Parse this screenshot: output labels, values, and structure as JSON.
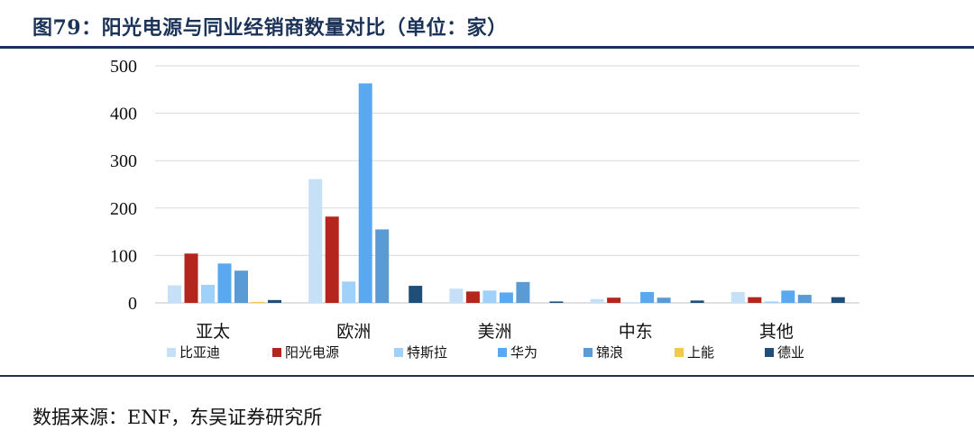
{
  "figure": {
    "title": "图79：阳光电源与同业经销商数量对比（单位：家）",
    "source": "数据来源：ENF，东吴证券研究所"
  },
  "chart_data": {
    "type": "bar",
    "title": "",
    "xlabel": "",
    "ylabel": "",
    "ylim": [
      0,
      500
    ],
    "yticks": [
      0,
      100,
      200,
      300,
      400,
      500
    ],
    "grid": true,
    "legend_position": "bottom",
    "categories": [
      "亚太",
      "欧洲",
      "美洲",
      "中东",
      "其他"
    ],
    "series": [
      {
        "name": "比亚迪",
        "color": "#c6e0f7",
        "values": [
          37,
          261,
          30,
          8,
          23
        ]
      },
      {
        "name": "阳光电源",
        "color": "#b3261e",
        "values": [
          104,
          182,
          24,
          11,
          12
        ]
      },
      {
        "name": "特斯拉",
        "color": "#9fd1fb",
        "values": [
          38,
          45,
          26,
          1,
          3
        ]
      },
      {
        "name": "华为",
        "color": "#5aa9f0",
        "values": [
          83,
          463,
          22,
          23,
          26
        ]
      },
      {
        "name": "锦浪",
        "color": "#5b9bd5",
        "values": [
          68,
          155,
          44,
          11,
          17
        ]
      },
      {
        "name": "上能",
        "color": "#f2c94c",
        "values": [
          2,
          0,
          0,
          0,
          0
        ]
      },
      {
        "name": "德业",
        "color": "#1f4e79",
        "values": [
          6,
          36,
          3,
          5,
          12
        ]
      }
    ]
  }
}
